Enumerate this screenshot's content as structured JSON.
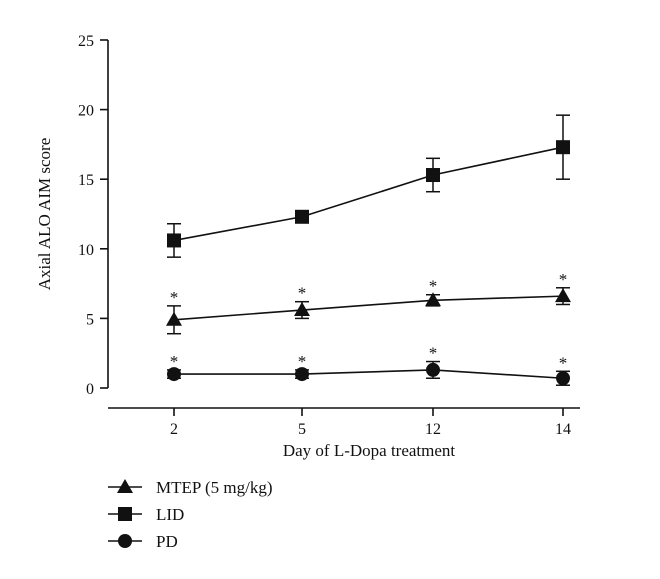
{
  "chart_data": {
    "type": "line",
    "title": "",
    "xlabel": "Day of L-Dopa treatment",
    "ylabel": "Axial ALO AIM score",
    "ylim": [
      0,
      25
    ],
    "yticks": [
      0,
      5,
      10,
      15,
      20,
      25
    ],
    "categories": [
      "2",
      "5",
      "12",
      "14"
    ],
    "significance_marker": "*",
    "series": [
      {
        "name": "LID",
        "marker": "square",
        "values": [
          10.6,
          12.3,
          15.3,
          17.3
        ],
        "errors": [
          1.2,
          0.4,
          1.2,
          2.3
        ],
        "significance": [
          false,
          false,
          false,
          false
        ]
      },
      {
        "name": "MTEP (5 mg/kg)",
        "marker": "triangle",
        "values": [
          4.9,
          5.6,
          6.3,
          6.6
        ],
        "errors": [
          1.0,
          0.6,
          0.4,
          0.6
        ],
        "significance": [
          true,
          true,
          true,
          true
        ]
      },
      {
        "name": "PD",
        "marker": "circle",
        "values": [
          1.0,
          1.0,
          1.3,
          0.7
        ],
        "errors": [
          0.3,
          0.3,
          0.6,
          0.5
        ],
        "significance": [
          true,
          true,
          true,
          true
        ]
      }
    ],
    "legend": {
      "placement": "bottom-left",
      "order": [
        "MTEP (5 mg/kg)",
        "LID",
        "PD"
      ]
    }
  }
}
